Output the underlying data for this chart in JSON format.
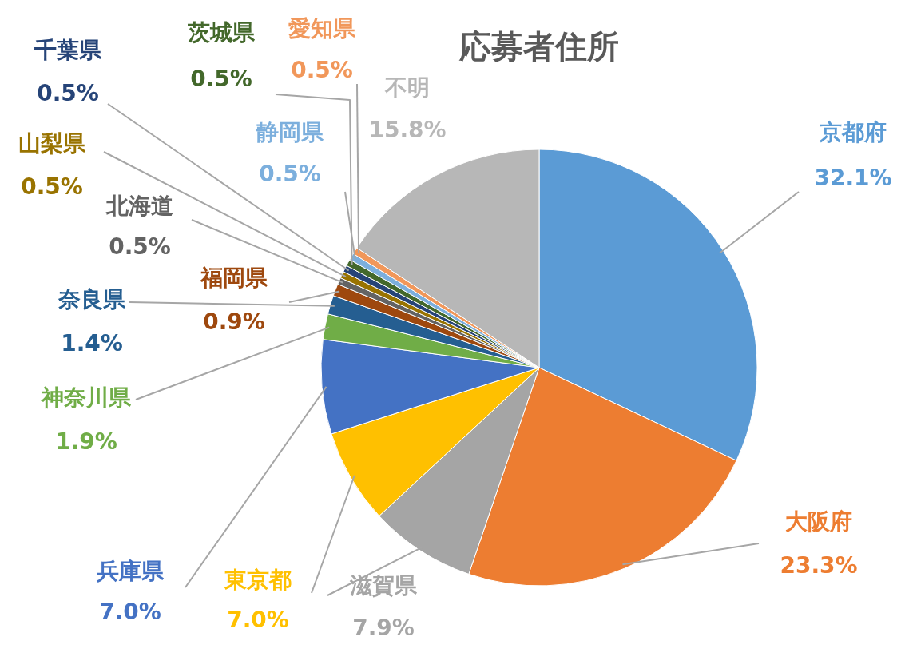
{
  "chart_data": {
    "type": "pie",
    "title": "応募者住所",
    "categories": [
      "京都府",
      "大阪府",
      "滋賀県",
      "東京都",
      "兵庫県",
      "神奈川県",
      "奈良県",
      "福岡県",
      "北海道",
      "山梨県",
      "千葉県",
      "茨城県",
      "静岡県",
      "愛知県",
      "不明"
    ],
    "values": [
      32.1,
      23.3,
      7.9,
      7.0,
      7.0,
      1.9,
      1.4,
      0.9,
      0.5,
      0.5,
      0.5,
      0.5,
      0.5,
      0.5,
      15.8
    ],
    "value_labels": [
      "32.1%",
      "23.3%",
      "7.9%",
      "7.0%",
      "7.0%",
      "1.9%",
      "1.4%",
      "0.9%",
      "0.5%",
      "0.5%",
      "0.5%",
      "0.5%",
      "0.5%",
      "0.5%",
      "15.8%"
    ],
    "colors": [
      "#5b9bd5",
      "#ed7d31",
      "#a5a5a5",
      "#ffc000",
      "#4472c4",
      "#70ad47",
      "#255e91",
      "#9e480e",
      "#636363",
      "#997300",
      "#264478",
      "#43682b",
      "#7cafdd",
      "#f1975a",
      "#b7b7b7"
    ]
  }
}
